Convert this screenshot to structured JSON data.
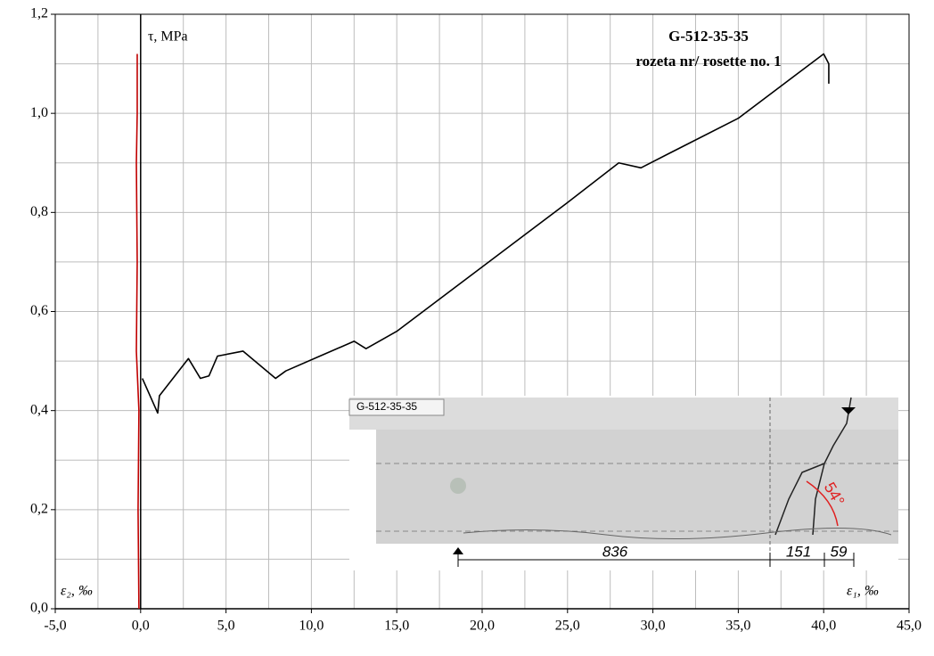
{
  "chart_data": {
    "type": "line",
    "title": "G-512-35-35",
    "subtitle": "rozeta nr/ rosette no. 1",
    "y_label": "τ, MPa",
    "x_label_left": "ε₂, ‰",
    "x_label_right": "ε₁, ‰",
    "xlim": [
      -5,
      45
    ],
    "ylim": [
      0,
      1.2
    ],
    "xticks": [
      {
        "value": -5,
        "label": "-5,0"
      },
      {
        "value": 0,
        "label": "0,0"
      },
      {
        "value": 5,
        "label": "5,0"
      },
      {
        "value": 10,
        "label": "10,0"
      },
      {
        "value": 15,
        "label": "15,0"
      },
      {
        "value": 20,
        "label": "20,0"
      },
      {
        "value": 25,
        "label": "25,0"
      },
      {
        "value": 30,
        "label": "30,0"
      },
      {
        "value": 35,
        "label": "35,0"
      },
      {
        "value": 40,
        "label": "40,0"
      },
      {
        "value": 45,
        "label": "45,0"
      }
    ],
    "yticks": [
      {
        "value": 0,
        "label": "0,0"
      },
      {
        "value": 0.2,
        "label": "0,2"
      },
      {
        "value": 0.4,
        "label": "0,4"
      },
      {
        "value": 0.6,
        "label": "0,6"
      },
      {
        "value": 0.8,
        "label": "0,8"
      },
      {
        "value": 1.0,
        "label": "1,0"
      },
      {
        "value": 1.2,
        "label": "1,2"
      }
    ],
    "xminorticks": [
      -2.5,
      2.5,
      7.5,
      12.5,
      17.5,
      22.5,
      27.5,
      32.5,
      37.5,
      42.5
    ],
    "yminorticks": [
      0.1,
      0.3,
      0.5,
      0.7,
      0.9,
      1.1
    ],
    "grid": true,
    "series": [
      {
        "color": "#000000",
        "x": [
          0.1,
          1.0,
          1.1,
          2.8,
          3.5,
          4.0,
          4.5,
          6.0,
          7.9,
          8.5,
          10.5,
          12.5,
          13.2,
          15.0,
          20.0,
          25.0,
          28.0,
          29.3,
          31.0,
          35.0,
          40.0,
          40.3,
          40.3
        ],
        "values": [
          0.465,
          0.395,
          0.43,
          0.505,
          0.465,
          0.47,
          0.51,
          0.52,
          0.465,
          0.48,
          0.51,
          0.54,
          0.525,
          0.56,
          0.69,
          0.82,
          0.9,
          0.89,
          0.92,
          0.99,
          1.12,
          1.1,
          1.06
        ]
      },
      {
        "color": "#c00000",
        "x": [
          -0.1,
          -0.15,
          -0.1,
          -0.25,
          -0.2,
          -0.25,
          -0.2,
          -0.2
        ],
        "values": [
          0,
          0.2,
          0.4,
          0.52,
          0.7,
          0.9,
          1.0,
          1.12
        ]
      }
    ]
  },
  "inset": {
    "label": "G-512-35-35",
    "dimensions": [
      "836",
      "151",
      "59"
    ],
    "angle": "54°"
  }
}
